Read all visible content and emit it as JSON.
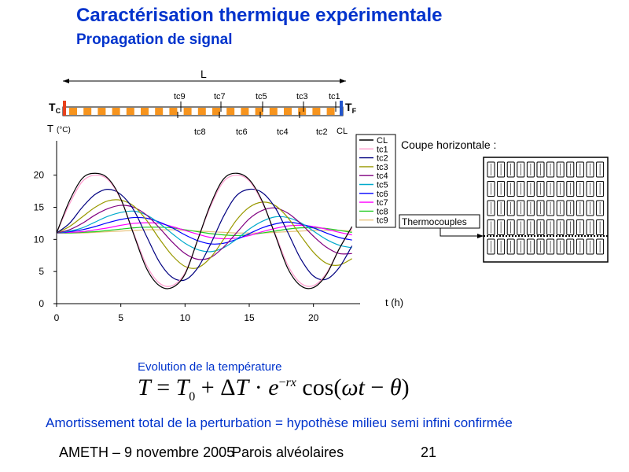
{
  "slide": {
    "title": "Caractérisation thermique expérimentale",
    "subtitle": "Propagation de signal",
    "caption": "Evolution de la température",
    "conclusion": "Amortissement total de la perturbation = hypothèse milieu semi infini confirmée",
    "footer_left": "AMETH – 9 novembre 2005",
    "footer_center": "Parois alvéolaires",
    "footer_right": "21"
  },
  "wall": {
    "length_label": "L",
    "left_label": "T",
    "left_sub": "C",
    "right_label": "T",
    "right_sub": "F",
    "top_sensors": [
      "tc9",
      "tc7",
      "tc5",
      "tc3",
      "tc1"
    ],
    "bottom_sensors": [
      "tc8",
      "tc6",
      "tc4",
      "tc2",
      "CL"
    ],
    "colors": {
      "block": "#f7941d",
      "hot": "#e8401c",
      "cold": "#2255cc"
    }
  },
  "section": {
    "title": "Coupe horizontale :",
    "thermocouples_label": "Thermocouples"
  },
  "chart_data": {
    "type": "line",
    "xlabel": "t (h)",
    "ylabel": "T",
    "yunit": "(°C)",
    "xlim": [
      0,
      24
    ],
    "ylim": [
      0,
      24
    ],
    "xticks": [
      0,
      5,
      10,
      15,
      20
    ],
    "yticks": [
      0,
      5,
      10,
      15,
      20
    ],
    "legend_position": "right",
    "x": [
      0,
      1,
      2,
      3,
      4,
      5,
      6,
      7,
      8,
      9,
      10,
      11,
      12,
      13,
      14,
      15,
      16,
      17,
      18,
      19,
      20,
      21,
      22,
      23
    ],
    "series": [
      {
        "name": "CL",
        "color": "#000000",
        "values": [
          11.0,
          16.0,
          19.5,
          20.3,
          19.5,
          16.3,
          10.8,
          5.5,
          2.8,
          2.5,
          4.6,
          10.0,
          15.5,
          19.4,
          20.3,
          19.3,
          16.0,
          10.8,
          5.5,
          2.8,
          2.5,
          4.5,
          8.5,
          12.0
        ]
      },
      {
        "name": "tc1",
        "color": "#ff99cc",
        "values": [
          11.0,
          15.5,
          19.0,
          20.0,
          19.3,
          16.2,
          11.0,
          6.0,
          3.2,
          2.8,
          4.8,
          10.0,
          15.2,
          19.0,
          20.0,
          19.1,
          15.8,
          11.0,
          6.0,
          3.2,
          2.8,
          4.7,
          8.5,
          11.8
        ]
      },
      {
        "name": "tc2",
        "color": "#000080",
        "values": [
          11.0,
          12.5,
          15.0,
          17.0,
          17.8,
          17.0,
          14.6,
          10.5,
          6.5,
          4.1,
          3.7,
          5.6,
          9.3,
          13.6,
          16.8,
          17.8,
          17.3,
          15.0,
          11.1,
          7.0,
          4.3,
          3.8,
          5.6,
          9.0
        ]
      },
      {
        "name": "tc3",
        "color": "#999900",
        "values": [
          11.0,
          12.0,
          13.5,
          15.0,
          16.0,
          16.1,
          15.2,
          13.0,
          10.1,
          7.5,
          5.8,
          5.6,
          7.2,
          10.0,
          13.0,
          15.0,
          15.8,
          15.3,
          13.4,
          10.6,
          8.0,
          6.3,
          6.0,
          7.0
        ]
      },
      {
        "name": "tc4",
        "color": "#800080",
        "values": [
          11.0,
          11.5,
          12.5,
          13.8,
          14.8,
          15.3,
          15.0,
          13.8,
          11.8,
          9.6,
          7.8,
          6.9,
          7.2,
          8.8,
          11.0,
          13.2,
          14.5,
          14.9,
          14.1,
          12.5,
          10.5,
          8.8,
          7.8,
          7.8
        ]
      },
      {
        "name": "tc5",
        "color": "#00aacc",
        "values": [
          11.0,
          11.3,
          11.8,
          12.7,
          13.6,
          14.2,
          14.4,
          13.8,
          12.5,
          10.9,
          9.4,
          8.4,
          8.1,
          8.7,
          10.0,
          11.6,
          12.8,
          13.5,
          13.4,
          12.6,
          11.3,
          10.0,
          9.1,
          8.7
        ]
      },
      {
        "name": "tc6",
        "color": "#0000ff",
        "values": [
          11.0,
          11.2,
          11.5,
          12.0,
          12.6,
          13.1,
          13.4,
          13.3,
          12.7,
          11.8,
          10.7,
          9.8,
          9.3,
          9.4,
          10.0,
          10.9,
          11.8,
          12.4,
          12.7,
          12.4,
          11.8,
          11.0,
          10.3,
          9.9
        ]
      },
      {
        "name": "tc7",
        "color": "#ff00ff",
        "values": [
          11.0,
          11.1,
          11.2,
          11.5,
          11.8,
          12.2,
          12.5,
          12.6,
          12.5,
          12.0,
          11.4,
          10.8,
          10.3,
          10.1,
          10.2,
          10.6,
          11.2,
          11.7,
          12.1,
          12.2,
          12.0,
          11.6,
          11.1,
          10.7
        ]
      },
      {
        "name": "tc8",
        "color": "#22cc22",
        "values": [
          11.0,
          11.0,
          11.1,
          11.2,
          11.4,
          11.6,
          11.8,
          11.9,
          11.9,
          11.8,
          11.5,
          11.2,
          10.9,
          10.7,
          10.6,
          10.7,
          11.0,
          11.3,
          11.6,
          11.8,
          11.8,
          11.7,
          11.4,
          11.1
        ]
      },
      {
        "name": "tc9",
        "color": "#e6c27a",
        "values": [
          11.0,
          11.0,
          11.0,
          11.1,
          11.2,
          11.3,
          11.4,
          11.5,
          11.5,
          11.5,
          11.4,
          11.3,
          11.2,
          11.1,
          11.0,
          11.0,
          11.0,
          11.1,
          11.2,
          11.3,
          11.4,
          11.4,
          11.4,
          11.3
        ]
      }
    ]
  }
}
